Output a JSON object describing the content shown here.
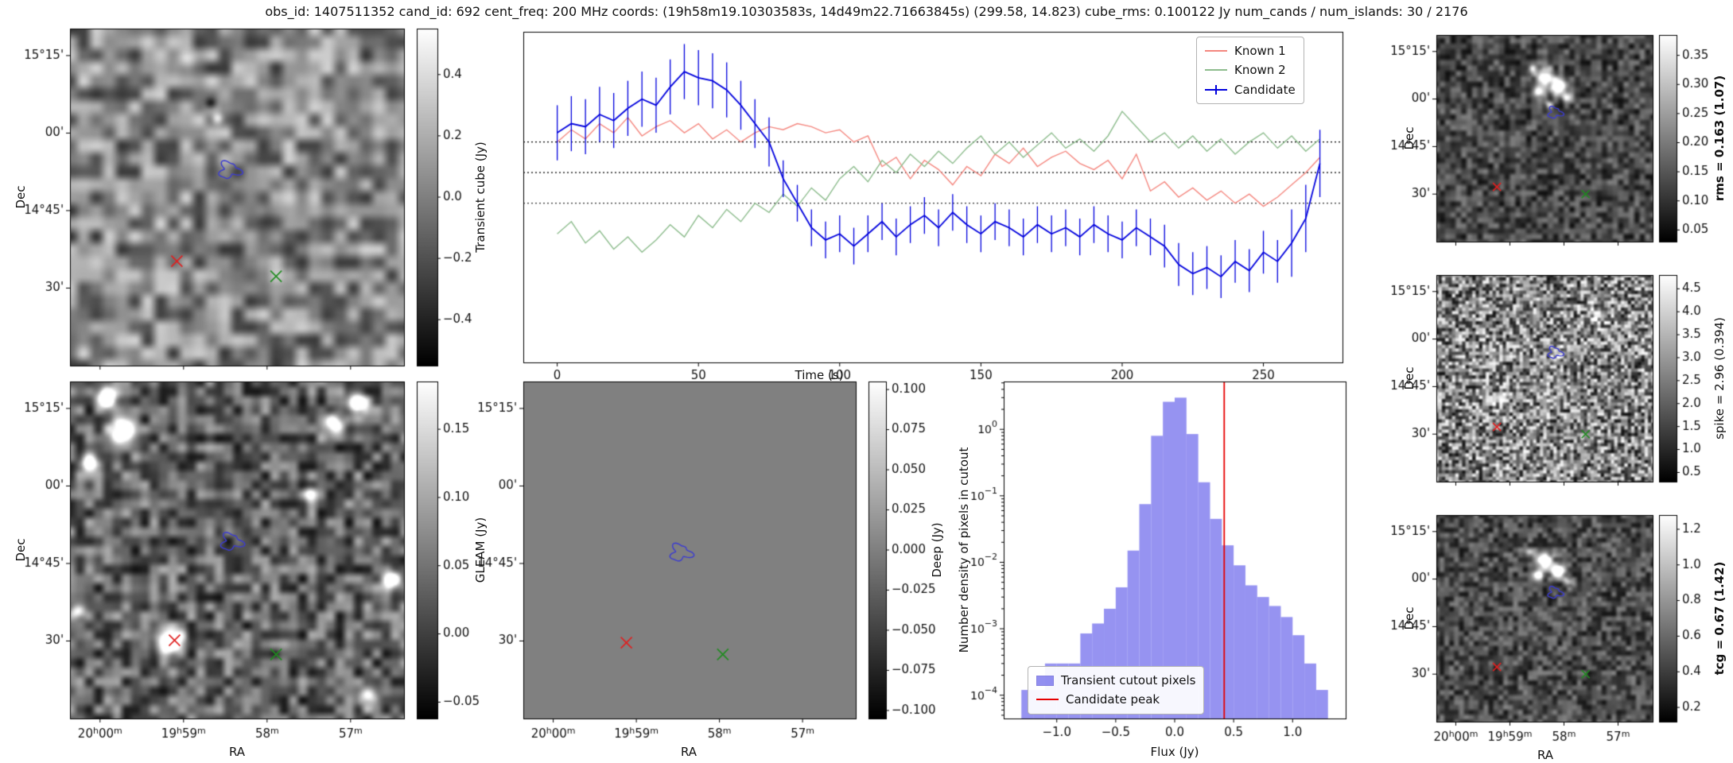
{
  "title": "obs_id: 1407511352 cand_id: 692 cent_freq: 200 MHz coords: (19h58m19.10303583s, 14d49m22.71663845s) (299.58, 14.823) cube_rms: 0.100122 Jy num_cands / num_islands: 30 / 2176",
  "axis_labels": {
    "dec": "Dec",
    "ra": "RA"
  },
  "side_labels": {
    "rms": "rms = 0.163 (1.07)",
    "spike": "spike = 2.96 (0.394)",
    "tcg": "tcg = 0.67 (1.42)"
  },
  "colors": {
    "contour": "#3b3bd1",
    "marker_red": "#e02020",
    "marker_green": "#1f8c1f",
    "hline": "#000000"
  },
  "chart_data": [
    {
      "id": "lightcurve",
      "type": "line",
      "xlabel": "Time (s)",
      "x_ticks": [
        0,
        50,
        100,
        150,
        200,
        250
      ],
      "xlim": [
        -12,
        278
      ],
      "ylim": [
        -0.62,
        0.46
      ],
      "hlines": [
        0.100122,
        0.0,
        -0.100122
      ],
      "legend_loc": "upper right",
      "x": [
        0,
        5,
        10,
        15,
        20,
        25,
        30,
        35,
        40,
        45,
        50,
        55,
        60,
        65,
        70,
        75,
        80,
        85,
        90,
        95,
        100,
        105,
        110,
        115,
        120,
        125,
        130,
        135,
        140,
        145,
        150,
        155,
        160,
        165,
        170,
        175,
        180,
        185,
        190,
        195,
        200,
        205,
        210,
        215,
        220,
        225,
        230,
        235,
        240,
        245,
        250,
        255,
        260,
        265,
        270
      ],
      "series": [
        {
          "name": "Known 1",
          "color": "#f4877f",
          "values": [
            0.1,
            0.14,
            0.11,
            0.16,
            0.13,
            0.18,
            0.12,
            0.15,
            0.17,
            0.13,
            0.16,
            0.11,
            0.14,
            0.1,
            0.13,
            0.15,
            0.14,
            0.16,
            0.15,
            0.13,
            0.14,
            0.1,
            0.12,
            0.02,
            0.05,
            -0.02,
            0.04,
            0.01,
            -0.04,
            0.02,
            -0.01,
            0.06,
            0.03,
            0.08,
            0.02,
            0.05,
            0.07,
            0.03,
            0.01,
            0.04,
            -0.02,
            0.06,
            -0.06,
            -0.03,
            -0.08,
            -0.05,
            -0.09,
            -0.06,
            -0.1,
            -0.07,
            -0.11,
            -0.08,
            -0.04,
            0.0,
            0.05
          ]
        },
        {
          "name": "Known 2",
          "color": "#8dbc8d",
          "values": [
            -0.2,
            -0.16,
            -0.23,
            -0.19,
            -0.25,
            -0.21,
            -0.26,
            -0.22,
            -0.17,
            -0.21,
            -0.14,
            -0.18,
            -0.12,
            -0.16,
            -0.1,
            -0.13,
            -0.07,
            -0.11,
            -0.05,
            -0.09,
            -0.02,
            0.02,
            -0.03,
            0.04,
            0.0,
            0.06,
            0.02,
            0.07,
            0.03,
            0.08,
            0.12,
            0.06,
            0.1,
            0.05,
            0.09,
            0.13,
            0.08,
            0.11,
            0.07,
            0.12,
            0.2,
            0.15,
            0.1,
            0.13,
            0.08,
            0.12,
            0.07,
            0.11,
            0.06,
            0.1,
            0.13,
            0.08,
            0.12,
            0.07,
            0.11
          ]
        },
        {
          "name": "Candidate",
          "color": "#0000dd",
          "values": [
            0.13,
            0.16,
            0.15,
            0.19,
            0.17,
            0.21,
            0.24,
            0.22,
            0.28,
            0.33,
            0.31,
            0.3,
            0.27,
            0.22,
            0.16,
            0.1,
            -0.02,
            -0.1,
            -0.18,
            -0.22,
            -0.2,
            -0.24,
            -0.2,
            -0.16,
            -0.21,
            -0.17,
            -0.14,
            -0.18,
            -0.13,
            -0.17,
            -0.2,
            -0.16,
            -0.18,
            -0.21,
            -0.17,
            -0.2,
            -0.18,
            -0.21,
            -0.17,
            -0.2,
            -0.22,
            -0.18,
            -0.21,
            -0.24,
            -0.3,
            -0.33,
            -0.31,
            -0.34,
            -0.29,
            -0.32,
            -0.26,
            -0.29,
            -0.23,
            -0.15,
            0.03
          ],
          "yerr": [
            0.09,
            0.09,
            0.09,
            0.09,
            0.09,
            0.09,
            0.09,
            0.09,
            0.09,
            0.09,
            0.09,
            0.09,
            0.09,
            0.08,
            0.08,
            0.08,
            0.06,
            0.06,
            0.06,
            0.06,
            0.06,
            0.06,
            0.06,
            0.06,
            0.06,
            0.06,
            0.06,
            0.06,
            0.06,
            0.06,
            0.06,
            0.06,
            0.06,
            0.06,
            0.06,
            0.06,
            0.06,
            0.06,
            0.06,
            0.06,
            0.06,
            0.06,
            0.06,
            0.07,
            0.07,
            0.07,
            0.07,
            0.07,
            0.07,
            0.07,
            0.07,
            0.07,
            0.11,
            0.11,
            0.11
          ]
        }
      ]
    },
    {
      "id": "histogram",
      "type": "bar",
      "xlabel": "Flux (Jy)",
      "ylabel": "Number density of pixels in cutout",
      "log_y": true,
      "bin_width": 0.1,
      "bin_centers": [
        -1.25,
        -1.15,
        -1.05,
        -0.95,
        -0.85,
        -0.75,
        -0.65,
        -0.55,
        -0.45,
        -0.35,
        -0.25,
        -0.15,
        -0.05,
        0.05,
        0.15,
        0.25,
        0.35,
        0.45,
        0.55,
        0.65,
        0.75,
        0.85,
        0.95,
        1.05,
        1.15,
        1.25
      ],
      "densities": [
        0.00012,
        0.00012,
        0.0003,
        0.0003,
        0.0003,
        0.00085,
        0.0012,
        0.002,
        0.0042,
        0.015,
        0.075,
        0.8,
        2.6,
        3.0,
        0.85,
        0.16,
        0.045,
        0.018,
        0.009,
        0.0045,
        0.003,
        0.0022,
        0.0015,
        0.0008,
        0.0003,
        0.00012
      ],
      "x_ticks": [
        -1.0,
        -0.5,
        0.0,
        0.5,
        1.0
      ],
      "y_tick_exponents": [
        0,
        -1,
        -2,
        -3,
        -4
      ],
      "xlim": [
        -1.45,
        1.45
      ],
      "peak_flux": 0.42,
      "fill_color": "#7874ed",
      "peak_color": "#e60000",
      "legend": [
        "Transient cutout pixels",
        "Candidate peak"
      ]
    },
    {
      "id": "transient_cube",
      "type": "heatmap",
      "colorbar_label": "Transient cube (Jy)",
      "cbar_ticks": [
        0.4,
        0.2,
        0.0,
        -0.2,
        -0.4
      ],
      "cbar_range": [
        -0.55,
        0.55
      ],
      "cbar_decimals": 1,
      "dec_ticks": [
        "15°15'",
        "00'",
        "14°45'",
        "30'"
      ],
      "ra_ticks": [
        "20h00m",
        "19h59m",
        "58m",
        "57m"
      ],
      "show_ra": false,
      "markers": {
        "red_x": [
          0.32,
          0.69
        ],
        "green_x": [
          0.617,
          0.735
        ],
        "contour": [
          0.477,
          0.42
        ]
      },
      "noise": {
        "seed": 7,
        "grid": 26,
        "base": 0.52,
        "amp": 0.3,
        "blobs": [
          [
            0.42,
            0.22,
            0.013,
            -0.6
          ],
          [
            0.44,
            0.265,
            0.012,
            0.5
          ],
          [
            0.35,
            0.1,
            0.02,
            0.25
          ],
          [
            0.6,
            0.55,
            0.025,
            -0.2
          ]
        ]
      }
    },
    {
      "id": "gleam",
      "type": "heatmap",
      "colorbar_label": "GLEAM (Jy)",
      "cbar_ticks": [
        0.15,
        0.1,
        0.05,
        0.0,
        -0.05
      ],
      "cbar_range": [
        -0.062,
        0.185
      ],
      "cbar_decimals": 2,
      "dec_ticks": [
        "15°15'",
        "00'",
        "14°45'",
        "30'"
      ],
      "ra_ticks": [
        "20h00m",
        "19h59m",
        "58m",
        "57m"
      ],
      "show_ra": true,
      "markers": {
        "red_x": [
          0.313,
          0.768
        ],
        "green_x": [
          0.617,
          0.81
        ],
        "contour": [
          0.483,
          0.476
        ]
      },
      "noise": {
        "seed": 21,
        "grid": 36,
        "base": 0.38,
        "amp": 0.3,
        "blobs": [
          [
            0.107,
            0.048,
            0.02,
            1.2
          ],
          [
            0.157,
            0.143,
            0.024,
            1.3
          ],
          [
            0.057,
            0.238,
            0.018,
            0.9
          ],
          [
            0.857,
            0.063,
            0.02,
            1.2
          ],
          [
            0.79,
            0.127,
            0.02,
            1.0
          ],
          [
            0.297,
            0.771,
            0.026,
            1.4
          ],
          [
            0.963,
            0.587,
            0.018,
            1.0
          ],
          [
            0.717,
            0.333,
            0.015,
            0.6
          ],
          [
            0.89,
            0.937,
            0.017,
            0.8
          ],
          [
            0.023,
            0.682,
            0.015,
            0.7
          ]
        ]
      }
    },
    {
      "id": "deep",
      "type": "heatmap",
      "colorbar_label": "Deep (Jy)",
      "cbar_ticks": [
        0.1,
        0.075,
        0.05,
        0.025,
        0.0,
        -0.025,
        -0.05,
        -0.075,
        -0.1
      ],
      "cbar_range": [
        -0.105,
        0.105
      ],
      "cbar_decimals": 3,
      "dec_ticks": [
        "15°15'",
        "00'",
        "14°45'",
        "30'"
      ],
      "ra_ticks": [
        "20h00m",
        "19h59m",
        "58m",
        "57m"
      ],
      "show_ra": true,
      "markers": {
        "red_x": [
          0.31,
          0.775
        ],
        "green_x": [
          0.6,
          0.81
        ],
        "contour": [
          0.473,
          0.508
        ]
      },
      "noise": {
        "seed": 3,
        "grid": 8,
        "base": 0.5,
        "amp": 0.0,
        "blobs": []
      }
    },
    {
      "id": "rms_map",
      "type": "heatmap",
      "cbar_ticks": [
        0.35,
        0.3,
        0.25,
        0.2,
        0.15,
        0.1,
        0.05
      ],
      "cbar_range": [
        0.03,
        0.385
      ],
      "cbar_decimals": 2,
      "dec_ticks": [
        "15°15'",
        "00'",
        "14°45'",
        "30'"
      ],
      "ra_ticks": [
        "20h00m",
        "19h59m",
        "58m",
        "57m"
      ],
      "show_ra": false,
      "markers": {
        "red_x": [
          0.28,
          0.735
        ],
        "green_x": [
          0.69,
          0.77
        ],
        "contour": [
          0.548,
          0.376
        ]
      },
      "noise": {
        "seed": 31,
        "grid": 40,
        "base": 0.28,
        "amp": 0.22,
        "blobs": [
          [
            0.5,
            0.2,
            0.028,
            1.0
          ],
          [
            0.56,
            0.25,
            0.024,
            1.3
          ],
          [
            0.47,
            0.27,
            0.018,
            0.9
          ],
          [
            0.6,
            0.3,
            0.016,
            0.7
          ],
          [
            0.52,
            0.33,
            0.013,
            0.5
          ],
          [
            0.44,
            0.16,
            0.013,
            0.6
          ]
        ]
      }
    },
    {
      "id": "spike_map",
      "type": "heatmap",
      "cbar_ticks": [
        4.5,
        4.0,
        3.5,
        3.0,
        2.5,
        2.0,
        1.5,
        1.0,
        0.5
      ],
      "cbar_range": [
        0.3,
        4.8
      ],
      "cbar_decimals": 1,
      "dec_ticks": [
        "15°15'",
        "00'",
        "14°45'",
        "30'"
      ],
      "ra_ticks": [
        "20h00m",
        "19h59m",
        "58m",
        "57m"
      ],
      "show_ra": false,
      "markers": {
        "red_x": [
          0.28,
          0.735
        ],
        "green_x": [
          0.69,
          0.77
        ],
        "contour": [
          0.548,
          0.376
        ]
      },
      "noise": {
        "seed": 47,
        "grid": 64,
        "base": 0.52,
        "amp": 0.46,
        "fine": true,
        "blobs": [
          [
            0.56,
            0.38,
            0.02,
            0.5
          ],
          [
            0.3,
            0.6,
            0.03,
            0.3
          ],
          [
            0.75,
            0.2,
            0.03,
            0.3
          ]
        ]
      }
    },
    {
      "id": "tcg_map",
      "type": "heatmap",
      "cbar_ticks": [
        1.2,
        1.0,
        0.8,
        0.6,
        0.4,
        0.2
      ],
      "cbar_range": [
        0.12,
        1.28
      ],
      "cbar_decimals": 1,
      "dec_ticks": [
        "15°15'",
        "00'",
        "14°45'",
        "30'"
      ],
      "ra_ticks": [
        "20h00m",
        "19h59m",
        "58m",
        "57m"
      ],
      "show_ra": true,
      "markers": {
        "red_x": [
          0.28,
          0.735
        ],
        "green_x": [
          0.69,
          0.77
        ],
        "contour": [
          0.548,
          0.376
        ]
      },
      "noise": {
        "seed": 59,
        "grid": 44,
        "base": 0.3,
        "amp": 0.22,
        "blobs": [
          [
            0.5,
            0.22,
            0.026,
            1.0
          ],
          [
            0.56,
            0.27,
            0.022,
            1.2
          ],
          [
            0.47,
            0.29,
            0.018,
            0.8
          ],
          [
            0.61,
            0.32,
            0.015,
            0.6
          ],
          [
            0.43,
            0.18,
            0.013,
            0.5
          ]
        ]
      }
    }
  ]
}
